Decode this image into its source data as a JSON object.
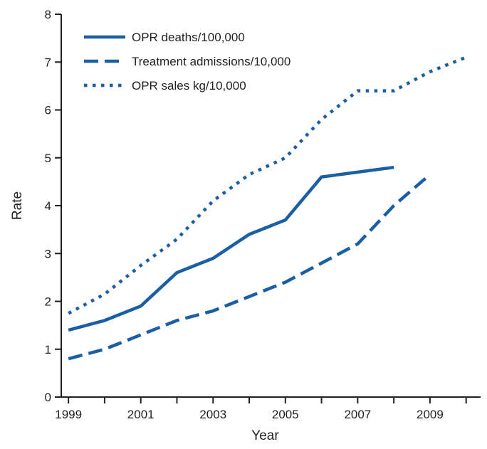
{
  "chart_data": {
    "type": "line",
    "xlabel": "Year",
    "ylabel": "Rate",
    "xlim": [
      1998.8,
      2010.4
    ],
    "ylim": [
      0,
      8
    ],
    "x_ticks": [
      1999,
      2000,
      2001,
      2002,
      2003,
      2004,
      2005,
      2006,
      2007,
      2008,
      2009,
      2010
    ],
    "x_tick_labels": [
      "1999",
      "2001",
      "2003",
      "2005",
      "2007",
      "2009"
    ],
    "y_ticks": [
      0,
      1,
      2,
      3,
      4,
      5,
      6,
      7,
      8
    ],
    "y_tick_labels": [
      "0",
      "1",
      "2",
      "3",
      "4",
      "5",
      "6",
      "7",
      "8"
    ],
    "grid": false,
    "legend_position": "top-left",
    "color": "#1a5fa3",
    "series": [
      {
        "name": "OPR deaths/100,000",
        "style": "solid",
        "x": [
          1999,
          2000,
          2001,
          2002,
          2003,
          2004,
          2005,
          2006,
          2007,
          2008
        ],
        "y": [
          1.4,
          1.6,
          1.9,
          2.6,
          2.9,
          3.4,
          3.7,
          4.6,
          4.7,
          4.8
        ]
      },
      {
        "name": "Treatment admissions/10,000",
        "style": "dashed",
        "x": [
          1999,
          2000,
          2001,
          2002,
          2003,
          2004,
          2005,
          2006,
          2007,
          2008,
          2009
        ],
        "y": [
          0.8,
          1.0,
          1.3,
          1.6,
          1.8,
          2.1,
          2.4,
          2.8,
          3.2,
          4.0,
          4.65
        ]
      },
      {
        "name": "OPR sales kg/10,000",
        "style": "dotted",
        "x": [
          1999,
          2000,
          2001,
          2002,
          2003,
          2004,
          2005,
          2006,
          2007,
          2008,
          2009,
          2010
        ],
        "y": [
          1.75,
          2.15,
          2.75,
          3.3,
          4.1,
          4.65,
          5.0,
          5.8,
          6.4,
          6.4,
          6.8,
          7.1
        ]
      }
    ]
  }
}
